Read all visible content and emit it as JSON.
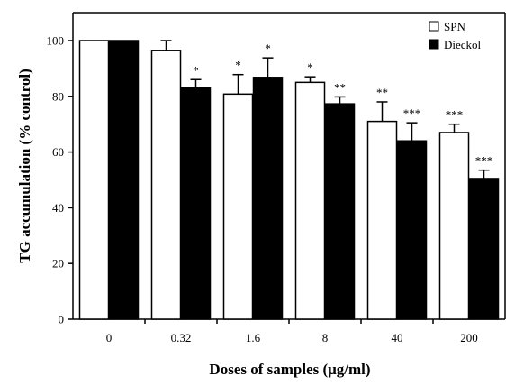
{
  "chart_data": {
    "type": "bar",
    "xlabel": "Doses of samples (μg/ml)",
    "ylabel": "TG accumulation (% control)",
    "ylim": [
      0,
      100
    ],
    "y_ticks": [
      0,
      20,
      40,
      60,
      80,
      100
    ],
    "categories": [
      "0",
      "0.32",
      "1.6",
      "8",
      "40",
      "200"
    ],
    "grid": false,
    "legend_position": "top-right",
    "series": [
      {
        "name": "SPN",
        "fill": "#ffffff",
        "values": [
          100,
          96.5,
          80.8,
          85.0,
          71.0,
          67.0
        ],
        "errors": [
          0,
          3.5,
          7.0,
          2.0,
          7.0,
          3.0
        ],
        "significance": [
          "",
          "",
          "*",
          "*",
          "**",
          "***"
        ]
      },
      {
        "name": "Dieckol",
        "fill": "#000000",
        "values": [
          100,
          83.0,
          86.8,
          77.3,
          64.0,
          50.5
        ],
        "errors": [
          0,
          3.0,
          7.0,
          2.5,
          6.5,
          3.0
        ],
        "significance": [
          "",
          "*",
          "*",
          "**",
          "***",
          "***"
        ]
      }
    ]
  }
}
